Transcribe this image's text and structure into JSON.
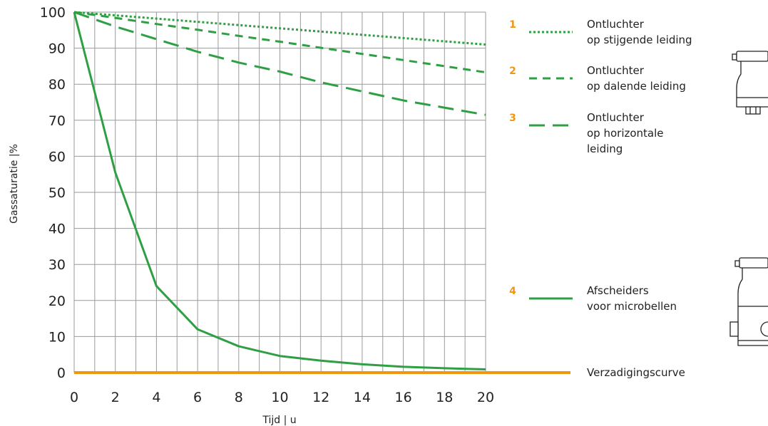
{
  "chart_data": {
    "type": "line",
    "xlabel": "Tijd | u",
    "ylabel": "Gassaturatie |%",
    "xlim": [
      0,
      20
    ],
    "ylim": [
      0,
      100
    ],
    "x_ticks": [
      "0",
      "2",
      "4",
      "6",
      "8",
      "10",
      "12",
      "14",
      "16",
      "18",
      "20"
    ],
    "y_ticks": [
      "0",
      "10",
      "20",
      "30",
      "40",
      "50",
      "60",
      "70",
      "80",
      "90",
      "100"
    ],
    "grid": true,
    "legend_position": "right",
    "x": [
      0,
      2,
      4,
      6,
      8,
      10,
      12,
      14,
      16,
      18,
      20
    ],
    "series": [
      {
        "number": "1",
        "name": [
          "Ontluchter",
          "op stijgende leiding"
        ],
        "color": "#2ea043",
        "style": "dotted",
        "values": [
          100,
          99.1,
          98.2,
          97.3,
          96.4,
          95.5,
          94.6,
          93.7,
          92.8,
          91.9,
          91
        ]
      },
      {
        "number": "2",
        "name": [
          "Ontluchter",
          "op dalende leiding"
        ],
        "color": "#2ea043",
        "style": "dashed",
        "values": [
          100,
          98.4,
          96.7,
          95.1,
          93.4,
          91.8,
          90.1,
          88.4,
          86.7,
          85,
          83.3
        ]
      },
      {
        "number": "3",
        "name": [
          "Ontluchter",
          "op horizontale",
          "leiding"
        ],
        "color": "#2ea043",
        "style": "longdash",
        "values": [
          100,
          96,
          92.5,
          89,
          86,
          83.5,
          80.5,
          78,
          75.5,
          73.5,
          71.5
        ]
      },
      {
        "number": "4",
        "name": [
          "Afscheiders",
          "voor microbellen"
        ],
        "color": "#2ea043",
        "style": "solid",
        "values": [
          100,
          55.5,
          24,
          12,
          7.3,
          4.6,
          3.3,
          2.3,
          1.6,
          1.2,
          0.9
        ]
      },
      {
        "number": "",
        "name": [
          "Verzadigingscurve"
        ],
        "color": "#f0960f",
        "style": "thick",
        "values": [
          0,
          0,
          0,
          0,
          0,
          0,
          0,
          0,
          0,
          0,
          0
        ]
      }
    ]
  }
}
